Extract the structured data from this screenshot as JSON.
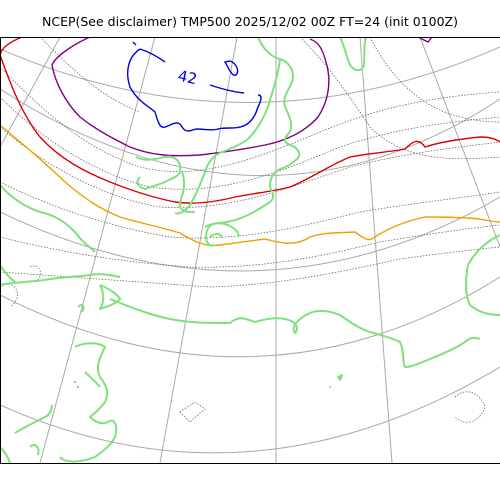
{
  "title": "NCEP(See disclaimer) TMP500 2025/12/02 00Z FT=24 (init 0100Z)",
  "contour_labels": [
    "42"
  ],
  "colors": {
    "coastline": "#7fe07f",
    "graticule": "#a9a9a9",
    "isotherm_minor": "#555555",
    "isotherm_cold_blue": "#0000dd",
    "isotherm_purple": "#800080",
    "isotherm_red": "#dd0000",
    "isotherm_orange": "#f0a000"
  }
}
